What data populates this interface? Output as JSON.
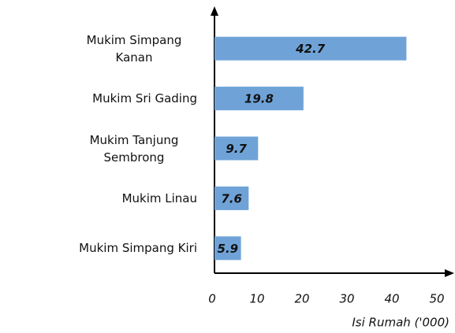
{
  "chart_data": {
    "type": "bar",
    "orientation": "horizontal",
    "categories": [
      "Mukim Simpang Kanan",
      "Mukim Sri Gading",
      "Mukim Tanjung Sembrong",
      "Mukim Linau",
      "Mukim Simpang Kiri"
    ],
    "values": [
      42.7,
      19.8,
      9.7,
      7.6,
      5.9
    ],
    "color": "#6fa3d8",
    "xlim": [
      0,
      50
    ],
    "xticks": [
      0,
      10,
      20,
      30,
      40,
      50
    ],
    "x_label": "Isi Rumah ('000)"
  }
}
